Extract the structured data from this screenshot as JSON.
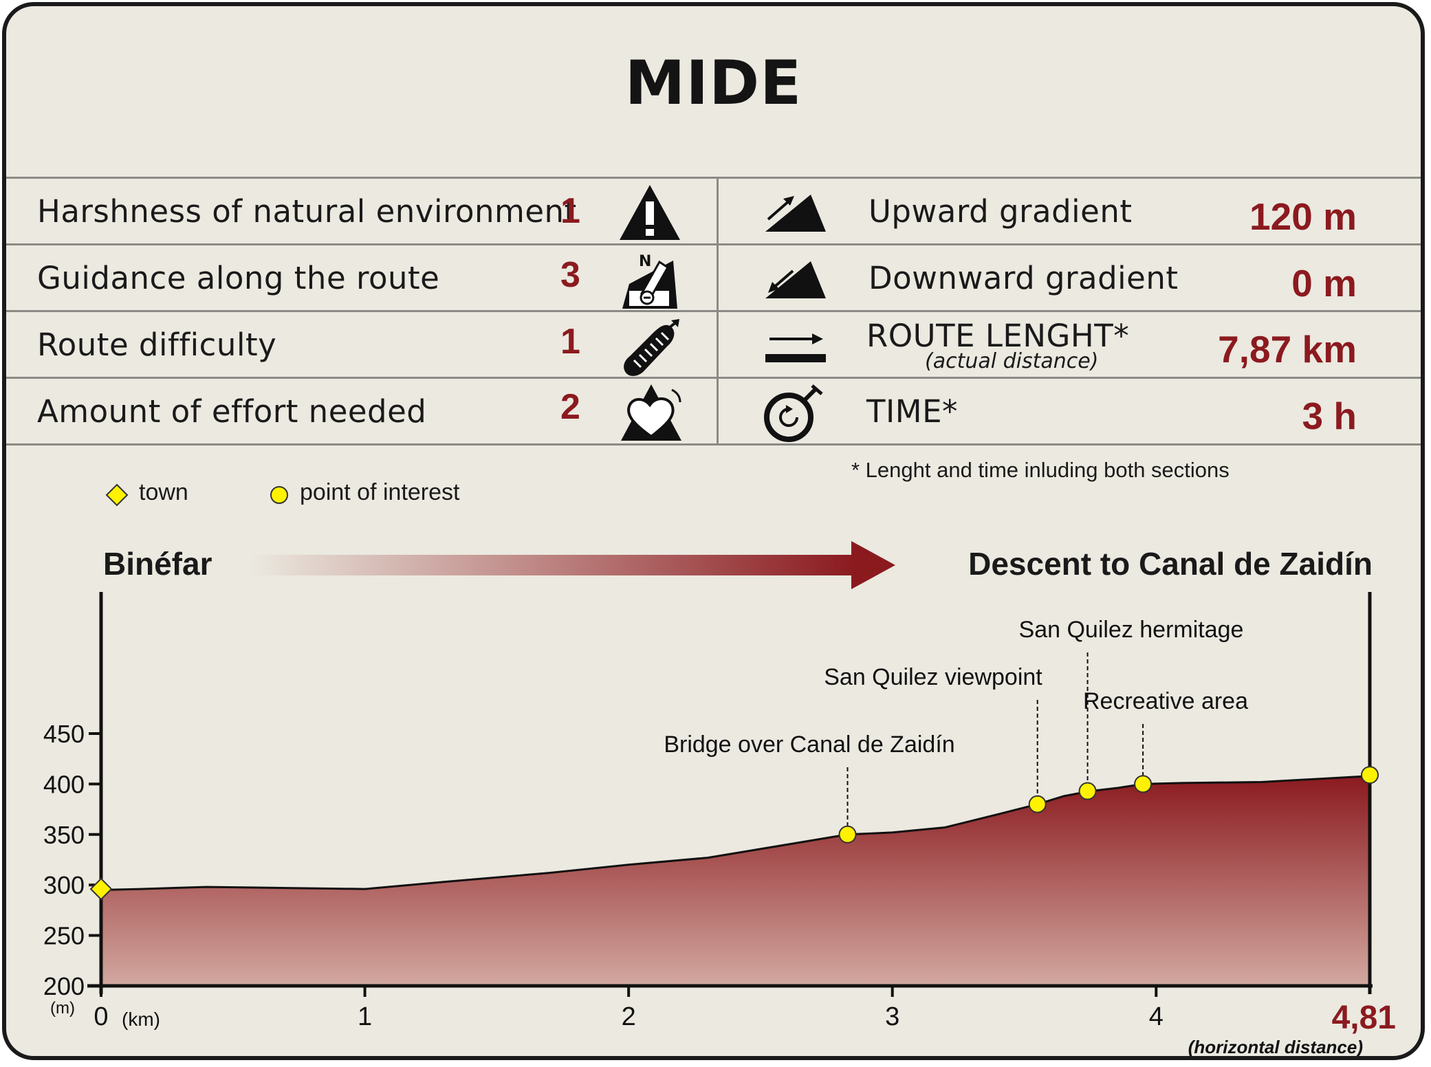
{
  "title": "MIDE",
  "mide_rows": [
    {
      "label": "Harshness of natural environment",
      "value": "1",
      "icon": "warning-triangle-icon"
    },
    {
      "label": "Guidance along the route",
      "value": "3",
      "icon": "compass-orientation-icon"
    },
    {
      "label": "Route difficulty",
      "value": "1",
      "icon": "footprint-icon"
    },
    {
      "label": "Amount of effort needed",
      "value": "2",
      "icon": "heart-mountain-icon"
    }
  ],
  "stats": [
    {
      "label": "Upward gradient",
      "sublabel": "",
      "value": "120 m",
      "icon": "upward-gradient-icon"
    },
    {
      "label": "Downward gradient",
      "sublabel": "",
      "value": "0 m",
      "icon": "downward-gradient-icon"
    },
    {
      "label": "ROUTE LENGHT*",
      "sublabel": "(actual distance)",
      "value": "7,87 km",
      "icon": "route-length-arrow-icon"
    },
    {
      "label": "TIME*",
      "sublabel": "",
      "value": "3 h",
      "icon": "stopwatch-icon"
    }
  ],
  "footnote": "* Lenght and time inluding both sections",
  "legend": {
    "town": "town",
    "poi": "point of interest"
  },
  "route": {
    "start": "Binéfar",
    "end": "Descent to Canal de Zaidín"
  },
  "colors": {
    "accent": "#8b1a1f",
    "background": "#ebe9e0",
    "marker": "#fff200"
  },
  "chart_data": {
    "type": "area",
    "title": "",
    "xlabel": "(km)",
    "ylabel": "(m)",
    "xlim": [
      0,
      4.81
    ],
    "ylim": [
      200,
      450
    ],
    "x_ticks": [
      "0",
      "1",
      "2",
      "3",
      "4"
    ],
    "x_end_label": "4,81",
    "x_end_sublabel": "(horizontal distance)",
    "y_ticks": [
      "200",
      "250",
      "300",
      "350",
      "400",
      "450"
    ],
    "profile": {
      "x": [
        0,
        0.15,
        0.4,
        0.7,
        1.0,
        1.3,
        1.7,
        2.0,
        2.3,
        2.6,
        2.83,
        3.0,
        3.2,
        3.4,
        3.55,
        3.65,
        3.75,
        3.85,
        3.95,
        4.1,
        4.4,
        4.81
      ],
      "y": [
        295,
        296,
        298,
        297,
        296,
        303,
        312,
        320,
        327,
        340,
        350,
        352,
        357,
        370,
        380,
        388,
        393,
        396,
        400,
        401,
        402,
        408
      ]
    },
    "points": [
      {
        "type": "town",
        "x": 0,
        "y": 296,
        "label": ""
      },
      {
        "type": "poi",
        "x": 2.83,
        "y": 350,
        "label": "Bridge over Canal de Zaidín"
      },
      {
        "type": "poi",
        "x": 3.55,
        "y": 380,
        "label": "San Quilez viewpoint"
      },
      {
        "type": "poi",
        "x": 3.74,
        "y": 393,
        "label": "San Quilez hermitage"
      },
      {
        "type": "poi",
        "x": 3.95,
        "y": 400,
        "label": "Recreative area"
      },
      {
        "type": "poi",
        "x": 4.81,
        "y": 409,
        "label": ""
      }
    ]
  }
}
